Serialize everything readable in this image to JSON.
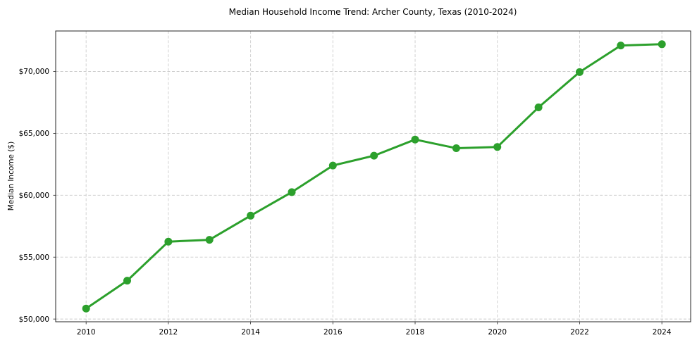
{
  "chart_data": {
    "type": "line",
    "title": "Median Household Income Trend: Archer County, Texas (2010-2024)",
    "xlabel": "",
    "ylabel": "Median Income ($)",
    "x": [
      2010,
      2011,
      2012,
      2013,
      2014,
      2015,
      2016,
      2017,
      2018,
      2019,
      2020,
      2021,
      2022,
      2023,
      2024
    ],
    "series": [
      {
        "name": "Median Household Income",
        "values": [
          50850,
          53100,
          56250,
          56400,
          58350,
          60250,
          62400,
          63200,
          64500,
          63800,
          63900,
          67100,
          69950,
          72100,
          72200
        ]
      }
    ],
    "xticks": {
      "values": [
        2010,
        2012,
        2014,
        2016,
        2018,
        2020,
        2022,
        2024
      ],
      "labels": [
        "2010",
        "2012",
        "2014",
        "2016",
        "2018",
        "2020",
        "2022",
        "2024"
      ]
    },
    "yticks": {
      "values": [
        50000,
        55000,
        60000,
        65000,
        70000
      ],
      "labels": [
        "$50,000",
        "$55,000",
        "$60,000",
        "$65,000",
        "$70,000"
      ]
    },
    "xlim": [
      2009.26,
      2024.7
    ],
    "ylim": [
      49780,
      73270
    ],
    "grid": true,
    "grid_style": "dashed",
    "legend": false,
    "colors": {
      "line": "#2ca02c",
      "marker": "#2ca02c",
      "grid": "#cccccc",
      "axis": "#262626",
      "text": "#000000",
      "background": "#ffffff"
    }
  }
}
